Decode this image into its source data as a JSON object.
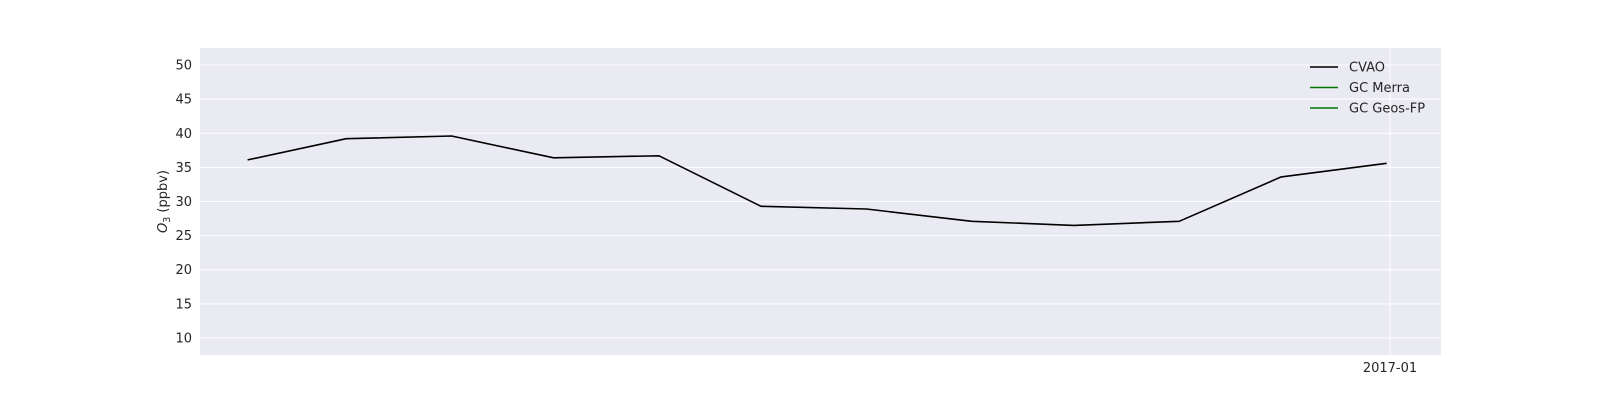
{
  "chart_data": {
    "type": "line",
    "ylabel": {
      "base": "O",
      "sub": "3",
      "rest": " (ppbv)"
    },
    "ylim": [
      7.5,
      52.5
    ],
    "yticks": [
      10,
      15,
      20,
      25,
      30,
      35,
      40,
      45,
      50
    ],
    "xlim": [
      "2016-01-17",
      "2017-01-16"
    ],
    "xticks": [
      {
        "date": "2017-01-01",
        "label": "2017-01"
      }
    ],
    "grid": true,
    "legend_position": "top-right",
    "colors": {
      "plot_bg": "#eaeaf2",
      "grid": "#ffffff",
      "CVAO": "#000000",
      "GC Merra": "#007700",
      "GC Geos-FP": "#007700"
    },
    "series": [
      {
        "name": "CVAO",
        "x": [
          "2016-01-31",
          "2016-02-29",
          "2016-03-31",
          "2016-04-30",
          "2016-05-31",
          "2016-06-30",
          "2016-07-31",
          "2016-08-31",
          "2016-09-30",
          "2016-10-31",
          "2016-11-30",
          "2016-12-31"
        ],
        "y": [
          36.1,
          39.2,
          39.6,
          36.4,
          36.7,
          29.3,
          28.9,
          27.1,
          26.5,
          27.1,
          33.6,
          35.6
        ]
      },
      {
        "name": "GC Merra",
        "x": [],
        "y": []
      },
      {
        "name": "GC Geos-FP",
        "x": [],
        "y": []
      }
    ]
  }
}
